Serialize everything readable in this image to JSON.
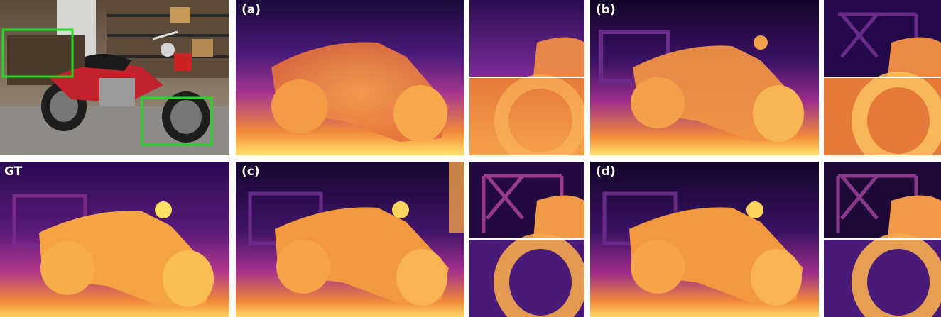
{
  "labels": {
    "a": "(a)",
    "b": "(b)",
    "c": "(c)",
    "d": "(d)",
    "gt": "GT"
  },
  "colors": {
    "roi_box": "#23d923",
    "depth_far": "#1a0a3a",
    "depth_mid": "#8c2a9e",
    "depth_near": "#ffe36a",
    "photo_bg": "#6b6258",
    "motorcycle_red": "#c1232c"
  }
}
